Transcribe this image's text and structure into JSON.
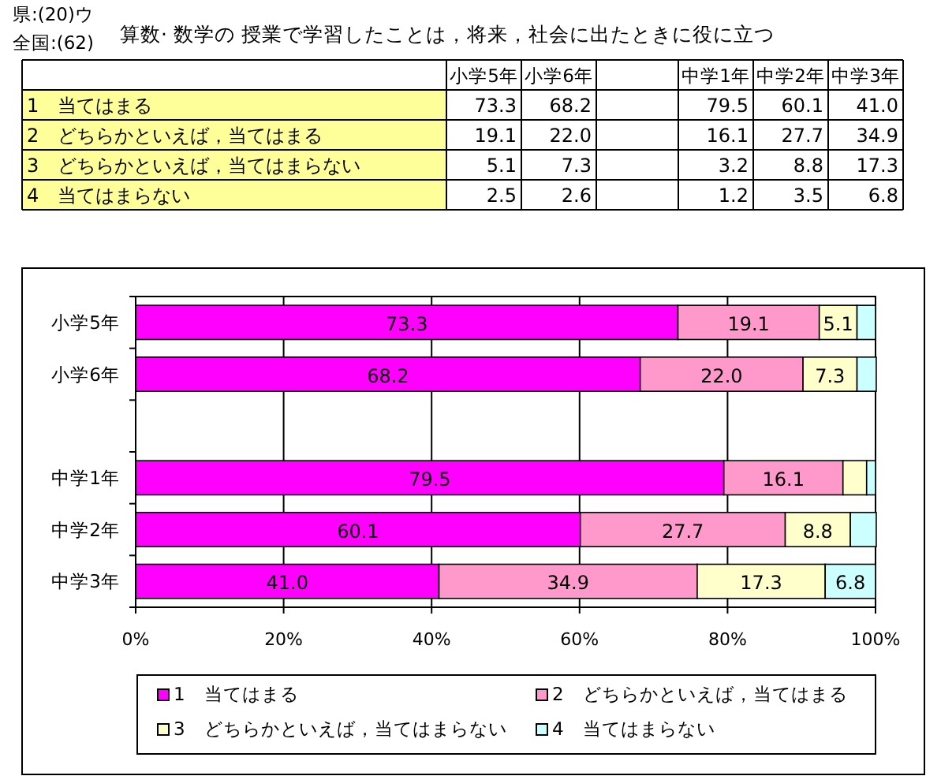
{
  "chart_data": [
    {
      "type": "heatmap",
      "title": "算数· 数学の 授業で学習したことは，将来，社会に出たときに役に立つ",
      "annotations": [
        "県:(20)ウ",
        "全国:(62)"
      ],
      "categories": [
        "小学5年",
        "小学6年",
        null,
        "中学1年",
        "中学2年",
        "中学3年"
      ],
      "y_categories": [
        "1　当てはまる",
        "2　どちらかといえば，当てはまる",
        "3　どちらかといえば，当てはまらない",
        "4　当てはまらない"
      ],
      "cells": [
        [
          73.3,
          68.2,
          null,
          79.5,
          60.1,
          41.0
        ],
        [
          19.1,
          22.0,
          null,
          16.1,
          27.7,
          34.9
        ],
        [
          5.1,
          7.3,
          null,
          3.2,
          8.8,
          17.3
        ],
        [
          2.5,
          2.6,
          null,
          1.2,
          3.5,
          6.8
        ]
      ],
      "cell_labels": [
        [
          "73.3",
          "68.2",
          null,
          "79.5",
          "60.1",
          "41.0"
        ],
        [
          "19.1",
          "22.0",
          null,
          "16.1",
          "27.7",
          "34.9"
        ],
        [
          "5.1",
          "7.3",
          null,
          "3.2",
          "8.8",
          "17.3"
        ],
        [
          "2.5",
          "2.6",
          null,
          "1.2",
          "3.5",
          "6.8"
        ]
      ]
    },
    {
      "type": "bar",
      "orientation": "horizontal",
      "stacked": true,
      "categories": [
        "小学5年",
        "小学6年",
        null,
        "中学1年",
        "中学2年",
        "中学3年"
      ],
      "series": [
        {
          "name": "1　当てはまる",
          "color": "#ff00ff",
          "values": [
            73.3,
            68.2,
            null,
            79.5,
            60.1,
            41.0
          ],
          "value_labels": [
            "73.3",
            "68.2",
            null,
            "79.5",
            "60.1",
            "41.0"
          ]
        },
        {
          "name": "2　どちらかといえば，当てはまる",
          "color": "#ff99cc",
          "values": [
            19.1,
            22.0,
            null,
            16.1,
            27.7,
            34.9
          ],
          "value_labels": [
            "19.1",
            "22.0",
            null,
            "16.1",
            "27.7",
            "34.9"
          ]
        },
        {
          "name": "3　どちらかといえば，当てはまらない",
          "color": "#ffffcc",
          "values": [
            5.1,
            7.3,
            null,
            3.2,
            8.8,
            17.3
          ],
          "value_labels": [
            "5.1",
            "7.3",
            null,
            null,
            "8.8",
            "17.3"
          ]
        },
        {
          "name": "4　当てはまらない",
          "color": "#ccffff",
          "values": [
            2.5,
            2.6,
            null,
            1.2,
            3.5,
            6.8
          ],
          "value_labels": [
            null,
            null,
            null,
            null,
            null,
            "6.8"
          ]
        }
      ],
      "xlim": [
        0,
        100
      ],
      "xticks": [
        {
          "value": 0,
          "label": "0%"
        },
        {
          "value": 20,
          "label": "20%"
        },
        {
          "value": 40,
          "label": "40%"
        },
        {
          "value": 60,
          "label": "60%"
        },
        {
          "value": 80,
          "label": "80%"
        },
        {
          "value": 100,
          "label": "100%"
        }
      ],
      "grid": "x",
      "legend": "bottom"
    }
  ]
}
